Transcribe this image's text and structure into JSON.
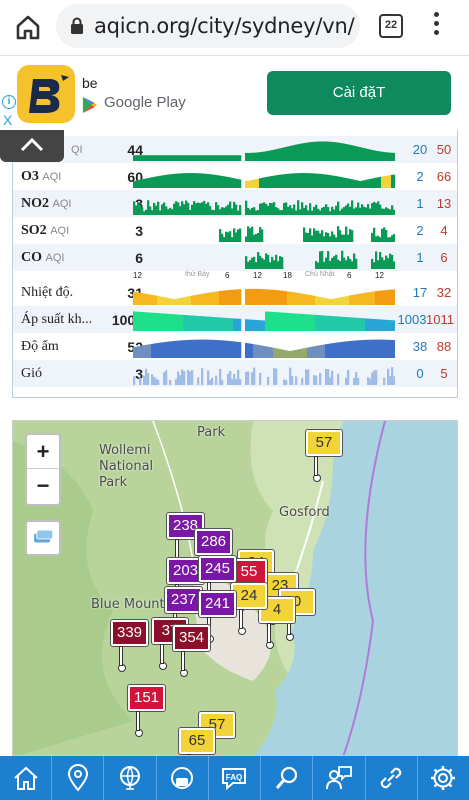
{
  "browser": {
    "url": "aqicn.org/city/sydney/vn/",
    "tab_count": "22"
  },
  "ad": {
    "app_name": "be",
    "store_label": "Google Play",
    "install_label": "Cài đặT",
    "info": "i",
    "close": "X"
  },
  "table": {
    "rows": [
      {
        "name": "",
        "unit": "QI",
        "value": "44",
        "min": "20",
        "max": "50"
      },
      {
        "name": "O3",
        "unit": "AQI",
        "value": "60",
        "min": "2",
        "max": "66"
      },
      {
        "name": "NO2",
        "unit": "AQI",
        "value": "3",
        "min": "1",
        "max": "13"
      },
      {
        "name": "SO2",
        "unit": "AQI",
        "value": "3",
        "min": "2",
        "max": "4"
      },
      {
        "name": "CO",
        "unit": "AQI",
        "value": "6",
        "min": "1",
        "max": "6"
      },
      {
        "name": "Nhiệt độ.",
        "unit": "",
        "value": "31",
        "min": "17",
        "max": "32"
      },
      {
        "name": "Áp suất kh...",
        "unit": "",
        "value": "1003",
        "min": "1003",
        "max": "1011"
      },
      {
        "name": "Độ ẩm",
        "unit": "",
        "value": "52",
        "min": "38",
        "max": "88"
      },
      {
        "name": "Gió",
        "unit": "",
        "value": "3",
        "min": "0",
        "max": "5"
      }
    ],
    "time_axis": {
      "t1": "12",
      "day1": "thứ Bảy",
      "t2": "6",
      "t3": "12",
      "t4": "18",
      "day2": "Chủ Nhật",
      "t5": "6",
      "t6": "12"
    }
  },
  "map": {
    "zoom_in": "+",
    "zoom_out": "−",
    "labels": {
      "wollemi": "Wollemi\nNational\nPark",
      "park": "Park",
      "gosford": "Gosford",
      "blue_mountains": "Blue Mountain"
    },
    "stations": [
      "57",
      "238",
      "286",
      "203",
      "245",
      "55",
      "24",
      "23",
      "237",
      "241",
      "4",
      "0",
      "339",
      "37",
      "354",
      "151",
      "57",
      "65"
    ]
  },
  "nav": [
    "home",
    "location",
    "globe",
    "mask",
    "faq",
    "search",
    "support",
    "link",
    "settings"
  ],
  "colors": {
    "good": "#0b9a55",
    "moderate": "#f2d33a",
    "unhealthy": "#d2143a",
    "very_unhealthy": "#7a17a6",
    "hazardous": "#8b0f2a",
    "nav_bg": "#1c7fd0",
    "install_bg": "#0f8a5f"
  }
}
